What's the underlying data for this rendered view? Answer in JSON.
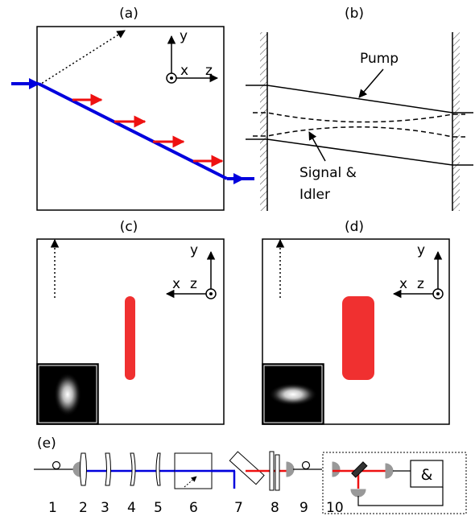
{
  "panels": {
    "a": {
      "label": "(a)",
      "axes": {
        "y": "y",
        "x": "x",
        "z": "z"
      }
    },
    "b": {
      "label": "(b)",
      "pump_label": "Pump",
      "signal_label_line1": "Signal &",
      "signal_label_line2": "Idler"
    },
    "c": {
      "label": "(c)",
      "axes": {
        "y": "y",
        "x": "x",
        "z": "z"
      }
    },
    "d": {
      "label": "(d)",
      "axes": {
        "y": "y",
        "x": "x",
        "z": "z"
      }
    },
    "e": {
      "label": "(e)",
      "component_numbers": [
        "1",
        "2",
        "3",
        "4",
        "5",
        "6",
        "7",
        "8",
        "9",
        "10"
      ],
      "detector_symbol": "&"
    }
  },
  "colors": {
    "pump_beam": "#0000dd",
    "arrow_red": "#ee1111",
    "spot_red": "#f03030",
    "line": "#000000"
  }
}
